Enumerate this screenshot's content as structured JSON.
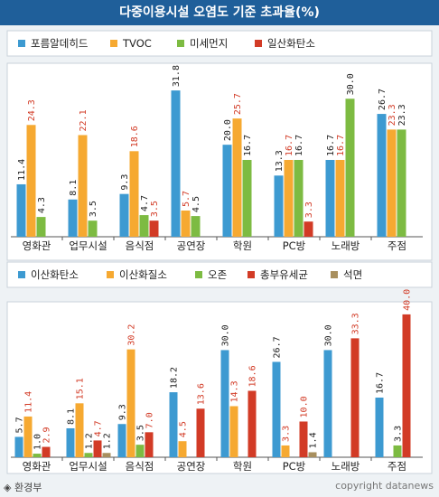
{
  "title": "다중이용시설 오염도 기준 초과율(%)",
  "footer": {
    "source": "◈ 환경부",
    "copyright": "copyright datanews"
  },
  "chart_data": [
    {
      "type": "bar",
      "categories": [
        "영화관",
        "업무시설",
        "음식점",
        "공연장",
        "학원",
        "PC방",
        "노래방",
        "주점"
      ],
      "ylim": [
        0,
        33
      ],
      "series": [
        {
          "name": "포름알데히드",
          "color": "#3d9ad1",
          "values": [
            11.4,
            8.1,
            9.3,
            31.8,
            20.0,
            13.3,
            16.7,
            26.7
          ]
        },
        {
          "name": "TVOC",
          "color": "#f6a931",
          "values": [
            24.3,
            22.1,
            18.6,
            5.7,
            25.7,
            16.7,
            16.7,
            23.3
          ]
        },
        {
          "name": "미세먼지",
          "color": "#7dbb42",
          "values": [
            4.3,
            3.5,
            4.7,
            4.5,
            16.7,
            16.7,
            30.0,
            23.3
          ]
        },
        {
          "name": "일산화탄소",
          "color": "#d23b26",
          "values": [
            null,
            null,
            3.5,
            null,
            null,
            3.3,
            null,
            null
          ]
        }
      ]
    },
    {
      "type": "bar",
      "categories": [
        "영화관",
        "업무시설",
        "음식점",
        "공연장",
        "학원",
        "PC방",
        "노래방",
        "주점"
      ],
      "ylim": [
        0,
        42
      ],
      "series": [
        {
          "name": "이산화탄소",
          "color": "#3d9ad1",
          "values": [
            5.7,
            8.1,
            9.3,
            18.2,
            30.0,
            26.7,
            30.0,
            16.7
          ]
        },
        {
          "name": "이산화질소",
          "color": "#f6a931",
          "values": [
            11.4,
            15.1,
            30.2,
            4.5,
            14.3,
            3.3,
            null,
            null
          ]
        },
        {
          "name": "오존",
          "color": "#7dbb42",
          "values": [
            1.0,
            1.2,
            3.5,
            null,
            null,
            null,
            null,
            3.3
          ]
        },
        {
          "name": "총부유세균",
          "color": "#d23b26",
          "values": [
            2.9,
            4.7,
            7.0,
            13.6,
            18.6,
            10.0,
            33.3,
            40.0
          ]
        },
        {
          "name": "석면",
          "color": "#a88f5e",
          "values": [
            null,
            1.2,
            null,
            null,
            null,
            1.4,
            null,
            null
          ]
        }
      ]
    }
  ]
}
